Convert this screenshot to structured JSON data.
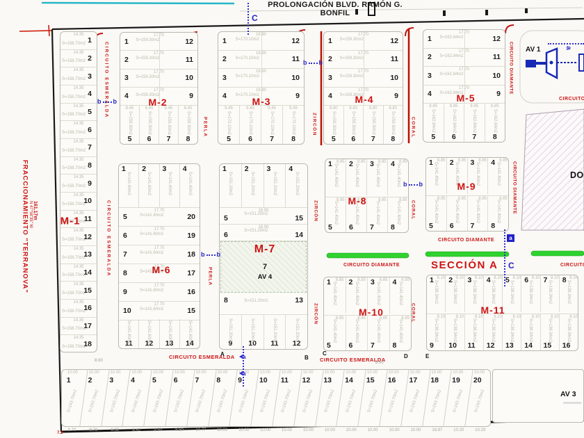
{
  "title": "PROLONGACIÓN BLVD. RAMÓN G. BONFIL",
  "boundary": {
    "name": "FRACCIONAMIENTO \"TERRANOVA\"",
    "bearing": "N 47°58'35\" W",
    "length": "161.17m",
    "corner_dim": "7.2"
  },
  "section_label": "SECCIÓN A",
  "avenues": {
    "av1": "AV 1",
    "av3": "AV 3",
    "av4": "AV 4"
  },
  "donation_label": "DON",
  "streets": {
    "esmeralda": "CIRCUITO ESMERALDA",
    "diamante": "CIRCUITO DIAMANTE",
    "perla": "PERLA",
    "zircon": "ZIRCÓN",
    "coral": "CORAL"
  },
  "markers": {
    "section_c": "C",
    "section_b": "b",
    "section_a": "a",
    "pt_a": "A",
    "pt_b": "B",
    "pt_c": "C",
    "pt_d": "D",
    "pt_e": "E",
    "dim_800": "8.00"
  },
  "blocks": {
    "m1": {
      "label": "M-1",
      "lots": [
        "1",
        "2",
        "3",
        "4",
        "5",
        "6",
        "7",
        "8",
        "9",
        "10",
        "11",
        "12",
        "13",
        "14",
        "15",
        "16",
        "17",
        "18"
      ],
      "area": "S=158.70m2",
      "dim": "14.35"
    },
    "m2": {
      "label": "M-2",
      "left": [
        "1",
        "2",
        "3",
        "4"
      ],
      "right": [
        "12",
        "11",
        "10",
        "9"
      ],
      "bottom": [
        "5",
        "6",
        "7",
        "8"
      ],
      "area": "S=159.30m2",
      "dim": "17.70",
      "dim_b": "8.45"
    },
    "m3": {
      "label": "M-3",
      "left": [
        "1",
        "2",
        "3",
        "4"
      ],
      "right": [
        "12",
        "11",
        "10",
        "9"
      ],
      "bottom": [
        "5",
        "6",
        "7",
        "8"
      ],
      "area": "S=170.10m2",
      "dim": "18.90",
      "dim_b": "9.45"
    },
    "m4": {
      "label": "M-4",
      "left": [
        "1",
        "2",
        "3",
        "4"
      ],
      "right": [
        "12",
        "11",
        "10",
        "9"
      ],
      "bottom": [
        "5",
        "6",
        "7",
        "8"
      ],
      "area": "S=159.30m2",
      "dim": "17.70",
      "dim_b": "8.80"
    },
    "m5": {
      "label": "M-5",
      "left": [
        "1",
        "2",
        "3",
        "4"
      ],
      "right": [
        "12",
        "11",
        "10",
        "9"
      ],
      "bottom": [
        "5",
        "6",
        "7",
        "8"
      ],
      "area": "S=162.84m2",
      "dim": "17.70",
      "dim_b": "8.85"
    },
    "m6": {
      "label": "M-6",
      "top": [
        "1",
        "2",
        "3",
        "4"
      ],
      "left": [
        "5",
        "6",
        "7",
        "8",
        "9",
        "10"
      ],
      "right": [
        "20",
        "19",
        "18",
        "17",
        "16",
        "15"
      ],
      "bottom": [
        "11",
        "12",
        "13",
        "14"
      ],
      "area": "S=141.60m2",
      "dim": "17.70",
      "dim_b": "8.85"
    },
    "m7": {
      "label": "M-7",
      "top": [
        "1",
        "2",
        "3",
        "4"
      ],
      "upper_pairs": [
        [
          "5",
          "15"
        ],
        [
          "6",
          "14"
        ]
      ],
      "center_lot": "7",
      "center_name": "AV 4",
      "lower_pairs": [
        [
          "8",
          "13"
        ]
      ],
      "bottom": [
        "9",
        "10",
        "11",
        "12"
      ],
      "area": "S=151.20m2",
      "dim": "18.90",
      "dim_b": "9.45"
    },
    "m8": {
      "label": "M-8",
      "top": [
        "1",
        "2",
        "3",
        "4"
      ],
      "bottom": [
        "5",
        "6",
        "7",
        "8"
      ],
      "area": "S=141.40m2",
      "dim": "8.85"
    },
    "m9": {
      "label": "M-9",
      "top": [
        "1",
        "2",
        "3",
        "4"
      ],
      "bottom": [
        "5",
        "6",
        "7",
        "8"
      ],
      "area": "S=141.40m2",
      "dim": "8.85"
    },
    "m10": {
      "label": "M-10",
      "top": [
        "1",
        "2",
        "3",
        "4"
      ],
      "bottom": [
        "5",
        "6",
        "7",
        "8"
      ],
      "area": "S=141.40m2",
      "dim": "8.85"
    },
    "m11": {
      "label": "M-11",
      "top": [
        "1",
        "2",
        "3",
        "4",
        "5",
        "6",
        "7",
        "8"
      ],
      "bottom": [
        "9",
        "10",
        "11",
        "12",
        "13",
        "14",
        "15",
        "16"
      ],
      "area": "S=138.34m2",
      "dim": "8.10"
    },
    "strip": {
      "lots": [
        "1",
        "2",
        "3",
        "4",
        "5",
        "6",
        "7",
        "8",
        "9",
        "10",
        "11",
        "12",
        "13",
        "14",
        "15",
        "16",
        "17",
        "18",
        "19",
        "20"
      ],
      "area": "S=243.70m2",
      "dim_top": "10.00",
      "dims_bottom": [
        "9.70",
        "9.70",
        "9.50",
        "8.40",
        "9.50",
        "8.50",
        "10.77",
        "10.00",
        "10.00",
        "10.00",
        "10.00",
        "10.00",
        "10.00",
        "10.00",
        "10.00",
        "10.00",
        "10.00",
        "16.87",
        "10.20",
        "10.29"
      ]
    }
  }
}
